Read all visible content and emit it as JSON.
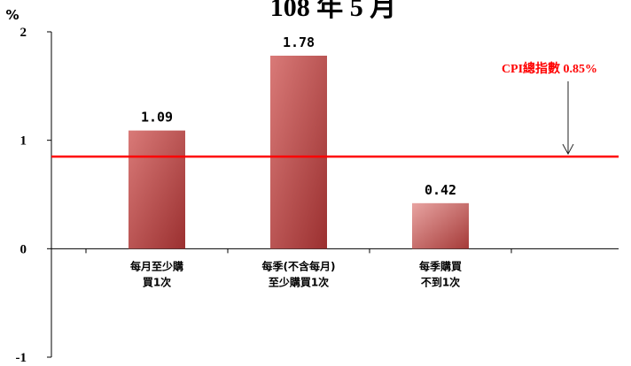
{
  "chart_data": {
    "type": "bar",
    "title": "108 年 5 月",
    "ylabel": "%",
    "ylim": [
      -1,
      2
    ],
    "yticks": [
      "2",
      "1",
      "0",
      "-1"
    ],
    "categories": [
      [
        "每月至少購",
        "買1次"
      ],
      [
        "每季(不含每月)",
        "至少購買1次"
      ],
      [
        "每季購買",
        "不到1次"
      ]
    ],
    "values": [
      1.09,
      1.78,
      0.42
    ],
    "value_labels": [
      "1.09",
      "1.78",
      "0.42"
    ],
    "reference_line": {
      "value": 0.85,
      "label": "CPI總指數 0.85%",
      "color": "#ff0000"
    },
    "bar_colors": [
      [
        "#d97a78",
        "#9b3030"
      ],
      [
        "#d97a78",
        "#9b3030"
      ],
      [
        "#e8a4a2",
        "#a53a38"
      ]
    ],
    "grid": false,
    "legend": "none"
  }
}
